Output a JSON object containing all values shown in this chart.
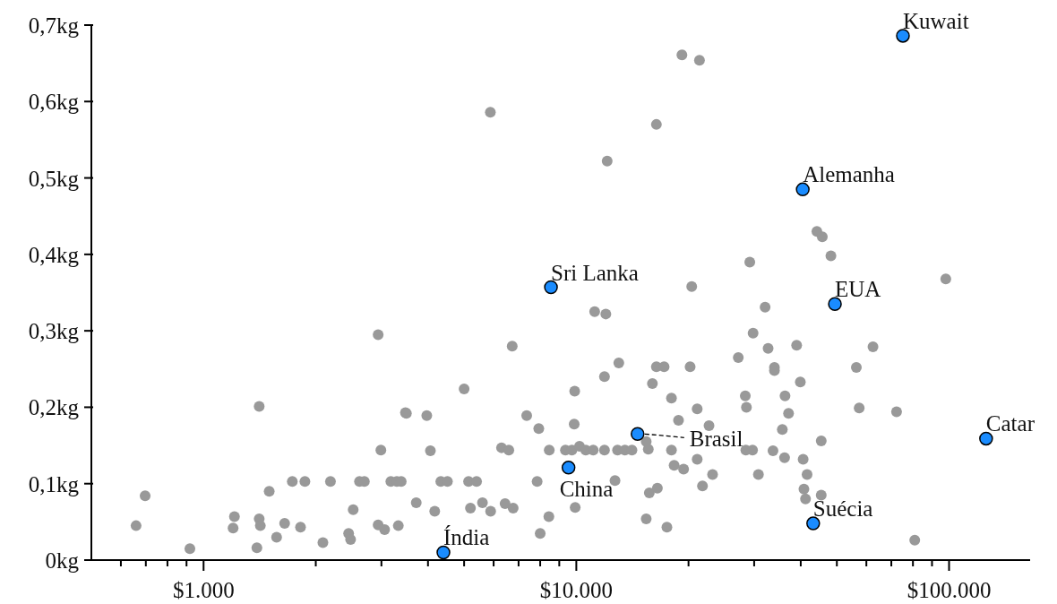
{
  "chart_data": {
    "type": "scatter",
    "log": "x",
    "marker": "circle",
    "xlim": [
      500,
      165000
    ],
    "xticks": [
      {
        "value": 600,
        "label": null
      },
      {
        "value": 700,
        "label": null
      },
      {
        "value": 800,
        "label": null
      },
      {
        "value": 900,
        "label": null
      },
      {
        "value": 1000,
        "label": "$1.000"
      },
      {
        "value": 2000,
        "label": null
      },
      {
        "value": 3000,
        "label": null
      },
      {
        "value": 4000,
        "label": null
      },
      {
        "value": 5000,
        "label": null
      },
      {
        "value": 6000,
        "label": null
      },
      {
        "value": 7000,
        "label": null
      },
      {
        "value": 8000,
        "label": null
      },
      {
        "value": 9000,
        "label": null
      },
      {
        "value": 10000,
        "label": "$10.000"
      },
      {
        "value": 20000,
        "label": null
      },
      {
        "value": 30000,
        "label": null
      },
      {
        "value": 40000,
        "label": null
      },
      {
        "value": 50000,
        "label": null
      },
      {
        "value": 60000,
        "label": null
      },
      {
        "value": 70000,
        "label": null
      },
      {
        "value": 80000,
        "label": null
      },
      {
        "value": 90000,
        "label": null
      },
      {
        "value": 100000,
        "label": "$100.000"
      }
    ],
    "ylim": [
      0,
      0.7
    ],
    "yticks": [
      {
        "value": 0,
        "label": "0kg"
      },
      {
        "value": 0.1,
        "label": "0,1kg"
      },
      {
        "value": 0.2,
        "label": "0,2kg"
      },
      {
        "value": 0.3,
        "label": "0,3kg"
      },
      {
        "value": 0.4,
        "label": "0,4kg"
      },
      {
        "value": 0.5,
        "label": "0,5kg"
      },
      {
        "value": 0.6,
        "label": "0,6kg"
      },
      {
        "value": 0.7,
        "label": "0,7kg"
      }
    ],
    "series": [
      {
        "color": "#999999",
        "x": [
          19200,
          21400,
          5880,
          16400,
          12100,
          20400,
          44200,
          45700,
          48200,
          29200,
          98000,
          32100,
          29800,
          32700,
          39000,
          62500,
          27200,
          34000,
          34000,
          56400,
          39900,
          28400,
          36300,
          28600,
          57400,
          37100,
          72300,
          35700,
          45400,
          28500,
          29700,
          33700,
          36200,
          40600,
          30800,
          41600,
          40800,
          45400,
          41200,
          80900,
          11200,
          12000,
          6730,
          13000,
          16400,
          17200,
          20200,
          11900,
          16000,
          5000,
          9900,
          18000,
          21100,
          3500,
          3970,
          7360,
          18800,
          7930,
          9870,
          22700,
          15400,
          15600,
          4060,
          6300,
          6590,
          8460,
          9350,
          9730,
          10200,
          10600,
          11100,
          11900,
          12900,
          13500,
          14100,
          18000,
          21100,
          18300,
          19400,
          23200,
          12700,
          21800,
          15700,
          16500,
          7850,
          4330,
          4510,
          5140,
          5400,
          9930,
          3720,
          4170,
          5200,
          5600,
          5890,
          6440,
          6770,
          8440,
          8000,
          15400,
          17500,
          2940,
          1410,
          3480,
          2990,
          697,
          1500,
          1730,
          1870,
          2190,
          2620,
          2700,
          3180,
          3300,
          3390,
          659,
          919,
          1210,
          1200,
          1410,
          1420,
          1390,
          1570,
          1650,
          1820,
          2090,
          2450,
          2480,
          2520,
          2940,
          3060,
          3330
        ],
        "values": [
          0.661,
          0.654,
          0.586,
          0.57,
          0.522,
          0.358,
          0.43,
          0.423,
          0.398,
          0.39,
          0.368,
          0.331,
          0.297,
          0.277,
          0.281,
          0.279,
          0.265,
          0.252,
          0.248,
          0.252,
          0.233,
          0.215,
          0.215,
          0.2,
          0.199,
          0.192,
          0.194,
          0.171,
          0.156,
          0.144,
          0.144,
          0.143,
          0.134,
          0.132,
          0.112,
          0.112,
          0.093,
          0.085,
          0.08,
          0.026,
          0.325,
          0.322,
          0.28,
          0.258,
          0.253,
          0.253,
          0.253,
          0.24,
          0.231,
          0.224,
          0.221,
          0.212,
          0.198,
          0.192,
          0.189,
          0.189,
          0.183,
          0.172,
          0.178,
          0.176,
          0.155,
          0.145,
          0.143,
          0.147,
          0.144,
          0.144,
          0.144,
          0.144,
          0.149,
          0.144,
          0.144,
          0.144,
          0.144,
          0.144,
          0.144,
          0.144,
          0.132,
          0.124,
          0.119,
          0.112,
          0.104,
          0.097,
          0.088,
          0.094,
          0.103,
          0.103,
          0.103,
          0.103,
          0.103,
          0.069,
          0.075,
          0.064,
          0.068,
          0.075,
          0.064,
          0.074,
          0.068,
          0.057,
          0.035,
          0.054,
          0.043,
          0.295,
          0.201,
          0.193,
          0.144,
          0.084,
          0.09,
          0.103,
          0.103,
          0.103,
          0.103,
          0.103,
          0.103,
          0.103,
          0.103,
          0.045,
          0.015,
          0.057,
          0.042,
          0.054,
          0.045,
          0.016,
          0.03,
          0.048,
          0.043,
          0.023,
          0.035,
          0.027,
          0.066,
          0.046,
          0.04,
          0.045
        ]
      },
      {
        "color": "#1a8cff",
        "x": [
          75200,
          40500,
          8550,
          49400,
          125700,
          14600,
          9530,
          43200,
          4400
        ],
        "values": [
          0.686,
          0.485,
          0.357,
          0.335,
          0.159,
          0.165,
          0.121,
          0.048,
          0.01
        ]
      }
    ],
    "annotations": [
      {
        "text": "Kuwait",
        "x": 75200,
        "y": 0.686
      },
      {
        "text": "Alemanha",
        "x": 40500,
        "y": 0.485
      },
      {
        "text": "Sri Lanka",
        "x": 8550,
        "y": 0.357
      },
      {
        "text": "EUA",
        "x": 49400,
        "y": 0.335
      },
      {
        "text": "Catar",
        "x": 125700,
        "y": 0.159
      },
      {
        "text": "Brasil",
        "x": 14600,
        "y": 0.165
      },
      {
        "text": "China",
        "x": 9530,
        "y": 0.121
      },
      {
        "text": "Suécia",
        "x": 43200,
        "y": 0.048
      },
      {
        "text": "Índia",
        "x": 4400,
        "y": 0.01
      }
    ]
  }
}
